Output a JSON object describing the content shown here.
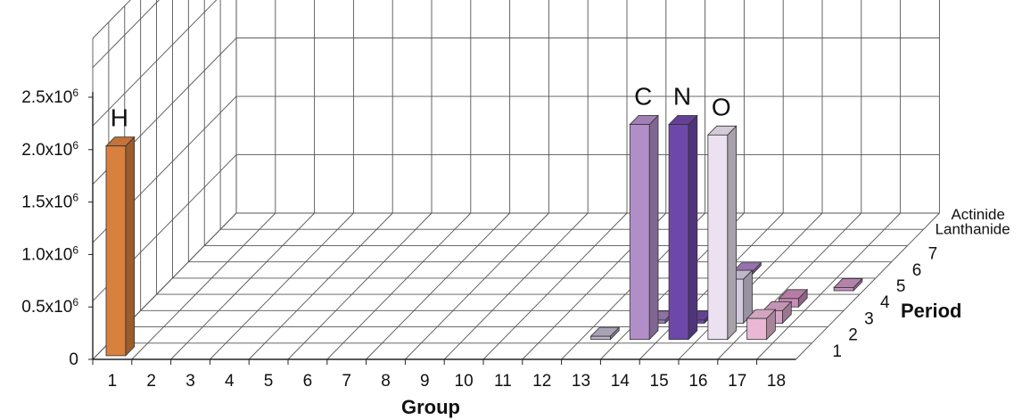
{
  "chart_data": {
    "type": "bar3d",
    "xlabel": "Group",
    "ylabel": "Period",
    "x_categories": [
      "1",
      "2",
      "3",
      "4",
      "5",
      "6",
      "7",
      "8",
      "9",
      "10",
      "11",
      "12",
      "13",
      "14",
      "15",
      "16",
      "17",
      "18"
    ],
    "y_categories": [
      "1",
      "2",
      "3",
      "4",
      "5",
      "6",
      "7",
      "Lanthanide",
      "Actinide"
    ],
    "z_ticks": [
      {
        "base": "0",
        "exp": ""
      },
      {
        "base": "0.5x10",
        "exp": "6"
      },
      {
        "base": "1.0x10",
        "exp": "6"
      },
      {
        "base": "1.5x10",
        "exp": "6"
      },
      {
        "base": "2.0x10",
        "exp": "6"
      },
      {
        "base": "2.5x10",
        "exp": "6"
      }
    ],
    "zlim": [
      0,
      2500000
    ],
    "grid": true,
    "bars": [
      {
        "group": 1,
        "period": 1,
        "value": 2000000,
        "color": "#d9803f",
        "label": "H"
      },
      {
        "group": 14,
        "period": 2,
        "value": 2050000,
        "color": "#b28ec9",
        "label": "C"
      },
      {
        "group": 15,
        "period": 2,
        "value": 2050000,
        "color": "#6e48a8",
        "label": "N"
      },
      {
        "group": 16,
        "period": 2,
        "value": 1950000,
        "color": "#ebe1f0",
        "label": "O"
      },
      {
        "group": 13,
        "period": 2,
        "value": 30000,
        "color": "#bcb4cb",
        "label": ""
      },
      {
        "group": 14,
        "period": 3,
        "value": 30000,
        "color": "#9a7db6",
        "label": ""
      },
      {
        "group": 15,
        "period": 3,
        "value": 30000,
        "color": "#6e48a8",
        "label": ""
      },
      {
        "group": 16,
        "period": 3,
        "value": 420000,
        "color": "#d4cbe0",
        "label": ""
      },
      {
        "group": 17,
        "period": 2,
        "value": 200000,
        "color": "#eab8d4",
        "label": ""
      },
      {
        "group": 17,
        "period": 3,
        "value": 120000,
        "color": "#d7a4c8",
        "label": ""
      },
      {
        "group": 17,
        "period": 4,
        "value": 80000,
        "color": "#c98bb8",
        "label": ""
      },
      {
        "group": 18,
        "period": 5,
        "value": 30000,
        "color": "#c890c0",
        "label": ""
      },
      {
        "group": 15,
        "period": 6,
        "value": 20000,
        "color": "#a97fc4",
        "label": ""
      }
    ]
  }
}
